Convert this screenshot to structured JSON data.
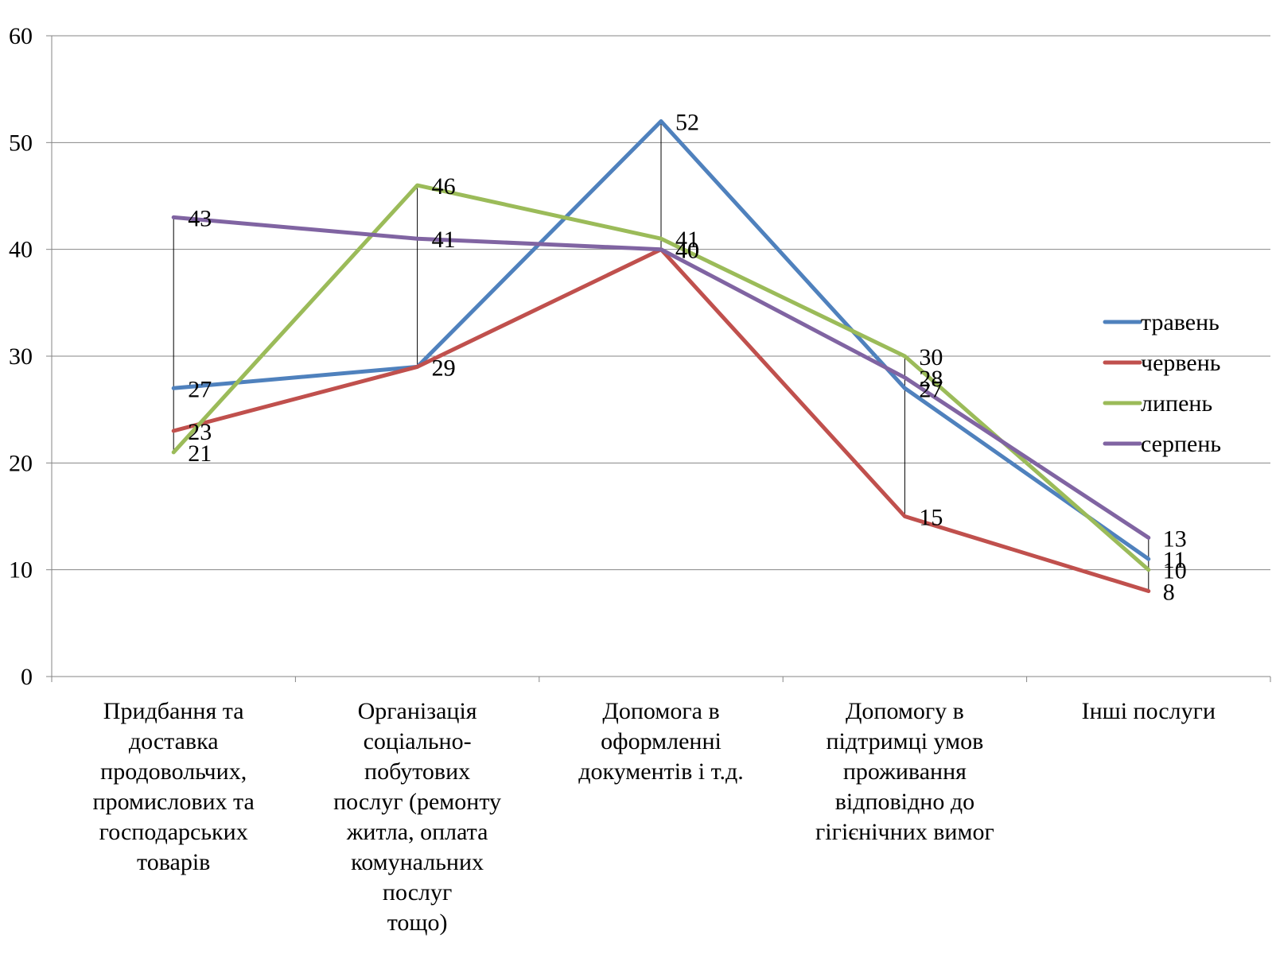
{
  "chart_data": {
    "type": "line",
    "categories": [
      "Придбання та\nдоставка\nпродовольчих,\nпромислових та\nгосподарських\nтоварів",
      "Організація\nсоціально-побутових\nпослуг (ремонту\nжитла, оплата\nкомунальних послуг\nтощо)",
      "Допомога в\nоформленні\nдокументів і т.д.",
      "Допомогу в\nпідтримці умов\nпроживання\nвідповідно до\nгігієнічних вимог",
      "Інші послуги"
    ],
    "series": [
      {
        "name": "травень",
        "color": "#4F81BD",
        "values": [
          27,
          29,
          52,
          27,
          11
        ]
      },
      {
        "name": "червень",
        "color": "#C0504D",
        "values": [
          23,
          29,
          40,
          15,
          8
        ]
      },
      {
        "name": "липень",
        "color": "#9BBB59",
        "values": [
          21,
          46,
          41,
          30,
          10
        ]
      },
      {
        "name": "серпень",
        "color": "#8064A2",
        "values": [
          43,
          41,
          40,
          28,
          13
        ]
      }
    ],
    "ylim": [
      0,
      60
    ],
    "yticks": [
      0,
      10,
      20,
      30,
      40,
      50,
      60
    ],
    "title": "",
    "xlabel": "",
    "ylabel": "",
    "grid": true,
    "high_low_lines": true,
    "legend_position": "right"
  }
}
